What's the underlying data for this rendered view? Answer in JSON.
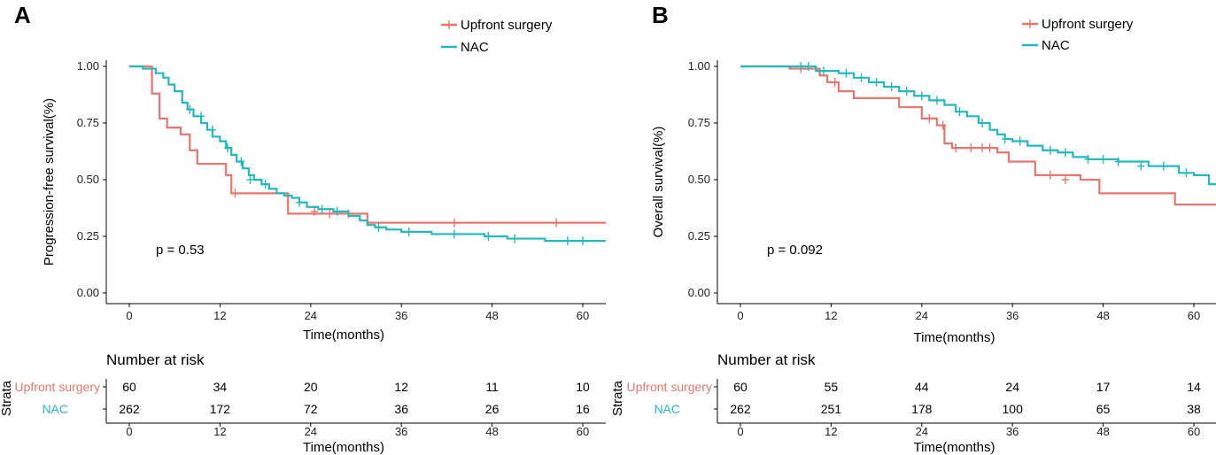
{
  "colors": {
    "upfront": "#E8756E",
    "nac": "#22B8BE",
    "axis": "#000000"
  },
  "chart_data": [
    {
      "type": "line",
      "panel_label": "A",
      "ylabel": "Progression-free survival(%)",
      "xlabel": "Time(months)",
      "xlim": [
        0,
        62
      ],
      "ylim": [
        0,
        1
      ],
      "xticks": [
        "0",
        "12",
        "24",
        "36",
        "48",
        "60"
      ],
      "yticks": [
        "0.00",
        "0.25",
        "0.50",
        "0.75",
        "1.00"
      ],
      "pvalue": "p = 0.53",
      "legend": [
        "Upfront surgery",
        "NAC"
      ],
      "series": [
        {
          "name": "Upfront surgery",
          "x": [
            0,
            2,
            3,
            4,
            5,
            6.8,
            8,
            9,
            11.5,
            12.8,
            13.5,
            20,
            21,
            29.8,
            31.5,
            62
          ],
          "y": [
            1.0,
            1.0,
            0.88,
            0.77,
            0.73,
            0.7,
            0.63,
            0.57,
            0.57,
            0.52,
            0.44,
            0.44,
            0.35,
            0.35,
            0.31,
            0.31
          ],
          "censor_x": [
            14,
            24.5,
            26.5,
            29,
            43,
            56.5
          ],
          "censor_y": [
            0.44,
            0.36,
            0.35,
            0.35,
            0.31,
            0.31
          ]
        },
        {
          "name": "NAC",
          "x": [
            0,
            1.8,
            3.5,
            4.5,
            5.2,
            6,
            7,
            7.7,
            8.5,
            9.5,
            10.3,
            11,
            12,
            12.8,
            13.5,
            14.2,
            15,
            15.8,
            16.5,
            17.5,
            18.5,
            19.5,
            20.5,
            21.5,
            22.5,
            23.5,
            25,
            27,
            29,
            30.5,
            31.5,
            32.5,
            34,
            36,
            40,
            44,
            47,
            50,
            52,
            55,
            62
          ],
          "y": [
            1.0,
            0.99,
            0.97,
            0.95,
            0.92,
            0.89,
            0.84,
            0.81,
            0.78,
            0.75,
            0.72,
            0.69,
            0.67,
            0.64,
            0.61,
            0.58,
            0.55,
            0.52,
            0.5,
            0.48,
            0.46,
            0.44,
            0.43,
            0.42,
            0.4,
            0.38,
            0.37,
            0.36,
            0.34,
            0.32,
            0.3,
            0.29,
            0.28,
            0.27,
            0.26,
            0.26,
            0.25,
            0.24,
            0.24,
            0.23,
            0.23
          ],
          "censor_x": [
            8,
            9.5,
            11,
            13,
            14.8,
            16,
            18,
            22.5,
            25.5,
            27.5,
            33,
            37,
            43,
            47.5,
            51,
            58,
            60
          ],
          "censor_y": [
            0.81,
            0.78,
            0.72,
            0.64,
            0.58,
            0.5,
            0.48,
            0.4,
            0.37,
            0.36,
            0.29,
            0.27,
            0.26,
            0.25,
            0.24,
            0.23,
            0.23
          ]
        }
      ],
      "risk_table": {
        "title": "Number at risk",
        "strata_title": "Strata",
        "xlabel": "Time(months)",
        "xticks": [
          "0",
          "12",
          "24",
          "36",
          "48",
          "60"
        ],
        "rows": [
          {
            "label": "Upfront surgery",
            "values": [
              "60",
              "34",
              "20",
              "12",
              "11",
              "10"
            ]
          },
          {
            "label": "NAC",
            "values": [
              "262",
              "172",
              "72",
              "36",
              "26",
              "16"
            ]
          }
        ]
      }
    },
    {
      "type": "line",
      "panel_label": "B",
      "ylabel": "Overall survival(%)",
      "xlabel": "Time(months)",
      "xlim": [
        0,
        62
      ],
      "ylim": [
        0,
        1
      ],
      "xticks": [
        "0",
        "12",
        "24",
        "36",
        "48",
        "60"
      ],
      "yticks": [
        "0.00",
        "0.25",
        "0.50",
        "0.75",
        "1.00"
      ],
      "pvalue": "p = 0.092",
      "legend": [
        "Upfront surgery",
        "NAC"
      ],
      "series": [
        {
          "name": "Upfront surgery",
          "x": [
            0,
            6.5,
            10.5,
            11.5,
            13,
            15,
            18,
            21,
            24,
            26,
            27,
            28,
            34,
            35.5,
            39,
            45,
            47.5,
            57.5,
            62
          ],
          "y": [
            1.0,
            0.99,
            0.96,
            0.93,
            0.89,
            0.86,
            0.86,
            0.82,
            0.77,
            0.74,
            0.66,
            0.64,
            0.62,
            0.58,
            0.52,
            0.5,
            0.44,
            0.39,
            0.39
          ],
          "censor_x": [
            8,
            12.5,
            25,
            26.8,
            28.5,
            30.5,
            32,
            33,
            41,
            43
          ],
          "censor_y": [
            0.99,
            0.93,
            0.77,
            0.74,
            0.64,
            0.64,
            0.64,
            0.64,
            0.52,
            0.5
          ],
          "drop_dash": true
        },
        {
          "name": "NAC",
          "x": [
            0,
            7,
            10,
            13,
            15,
            17,
            19,
            21,
            23,
            25,
            27,
            28.5,
            30,
            31.5,
            33,
            34,
            35,
            36,
            38,
            40,
            42,
            44,
            46,
            50,
            54,
            58,
            60,
            62
          ],
          "y": [
            1.0,
            1.0,
            0.98,
            0.97,
            0.95,
            0.93,
            0.91,
            0.89,
            0.87,
            0.85,
            0.83,
            0.8,
            0.78,
            0.75,
            0.72,
            0.7,
            0.68,
            0.67,
            0.65,
            0.63,
            0.62,
            0.6,
            0.59,
            0.58,
            0.56,
            0.53,
            0.52,
            0.48
          ],
          "censor_x": [
            8,
            9,
            11,
            14,
            16,
            18,
            20,
            22,
            24,
            26,
            29,
            32,
            35,
            37,
            41,
            43,
            46,
            48,
            50,
            53,
            56,
            59
          ],
          "censor_y": [
            1.0,
            1.0,
            0.98,
            0.97,
            0.95,
            0.93,
            0.91,
            0.89,
            0.87,
            0.85,
            0.8,
            0.75,
            0.68,
            0.67,
            0.63,
            0.62,
            0.59,
            0.59,
            0.58,
            0.56,
            0.56,
            0.53
          ]
        }
      ],
      "risk_table": {
        "title": "Number at risk",
        "strata_title": "Strata",
        "xlabel": "Time(months)",
        "xticks": [
          "0",
          "12",
          "24",
          "36",
          "48",
          "60"
        ],
        "rows": [
          {
            "label": "Upfront surgery",
            "values": [
              "60",
              "55",
              "44",
              "24",
              "17",
              "14"
            ]
          },
          {
            "label": "NAC",
            "values": [
              "262",
              "251",
              "178",
              "100",
              "65",
              "38"
            ]
          }
        ]
      }
    }
  ]
}
